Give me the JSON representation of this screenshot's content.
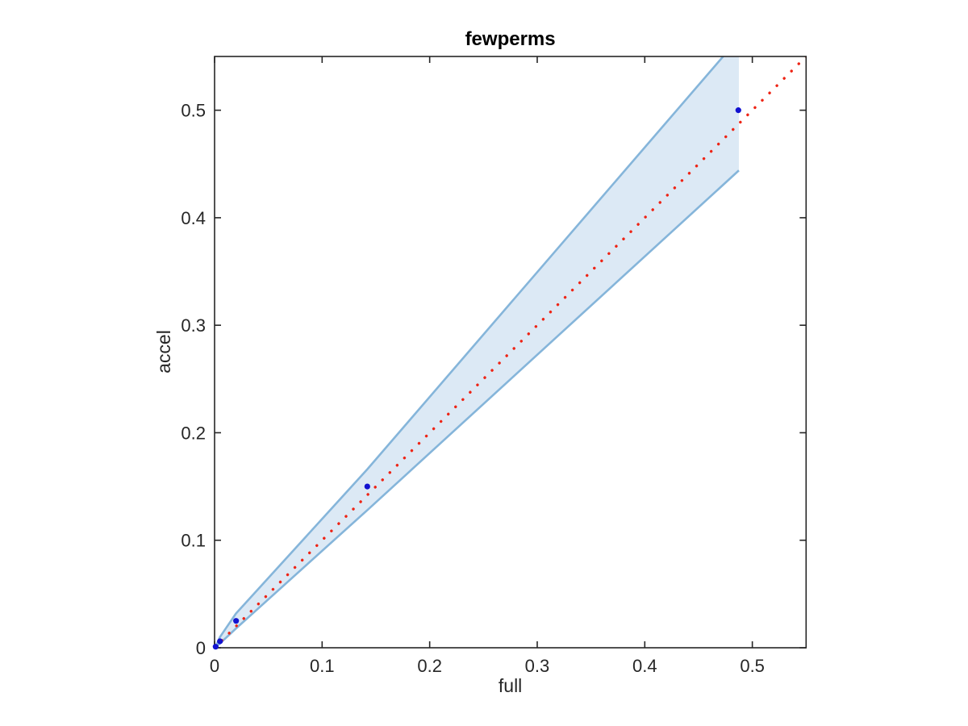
{
  "chart_data": {
    "type": "scatter",
    "title": "fewperms",
    "xlabel": "full",
    "ylabel": "accel",
    "xlim": [
      0,
      0.55
    ],
    "ylim": [
      0,
      0.55
    ],
    "grid": false,
    "legend": null,
    "xticks": {
      "values": [
        0,
        0.1,
        0.2,
        0.3,
        0.4,
        0.5
      ],
      "labels": [
        "0",
        "0.1",
        "0.2",
        "0.3",
        "0.4",
        "0.5"
      ]
    },
    "yticks": {
      "values": [
        0,
        0.1,
        0.2,
        0.3,
        0.4,
        0.5
      ],
      "labels": [
        "0",
        "0.1",
        "0.2",
        "0.3",
        "0.4",
        "0.5"
      ]
    },
    "series": [
      {
        "name": "data-points",
        "type": "scatter",
        "color": "#1212d0",
        "points": [
          [
            0.001,
            0.001
          ],
          [
            0.005,
            0.006
          ],
          [
            0.02,
            0.025
          ],
          [
            0.142,
            0.15
          ],
          [
            0.487,
            0.5
          ]
        ]
      },
      {
        "name": "identity-line",
        "type": "line",
        "style": "dotted",
        "color": "#ee2415",
        "points": [
          [
            0,
            0
          ],
          [
            0.55,
            0.55
          ]
        ]
      },
      {
        "name": "confidence-band",
        "type": "band",
        "fill_color": "#dce9f5",
        "edge_color": "#85b5da",
        "x": [
          0.001,
          0.005,
          0.02,
          0.142,
          0.4875
        ],
        "upper": [
          0.001,
          0.01,
          0.032,
          0.166,
          0.567
        ],
        "lower": [
          0.001,
          0.004,
          0.018,
          0.128,
          0.444
        ]
      }
    ],
    "axis_color": "#262626",
    "background_color": "#ffffff"
  }
}
